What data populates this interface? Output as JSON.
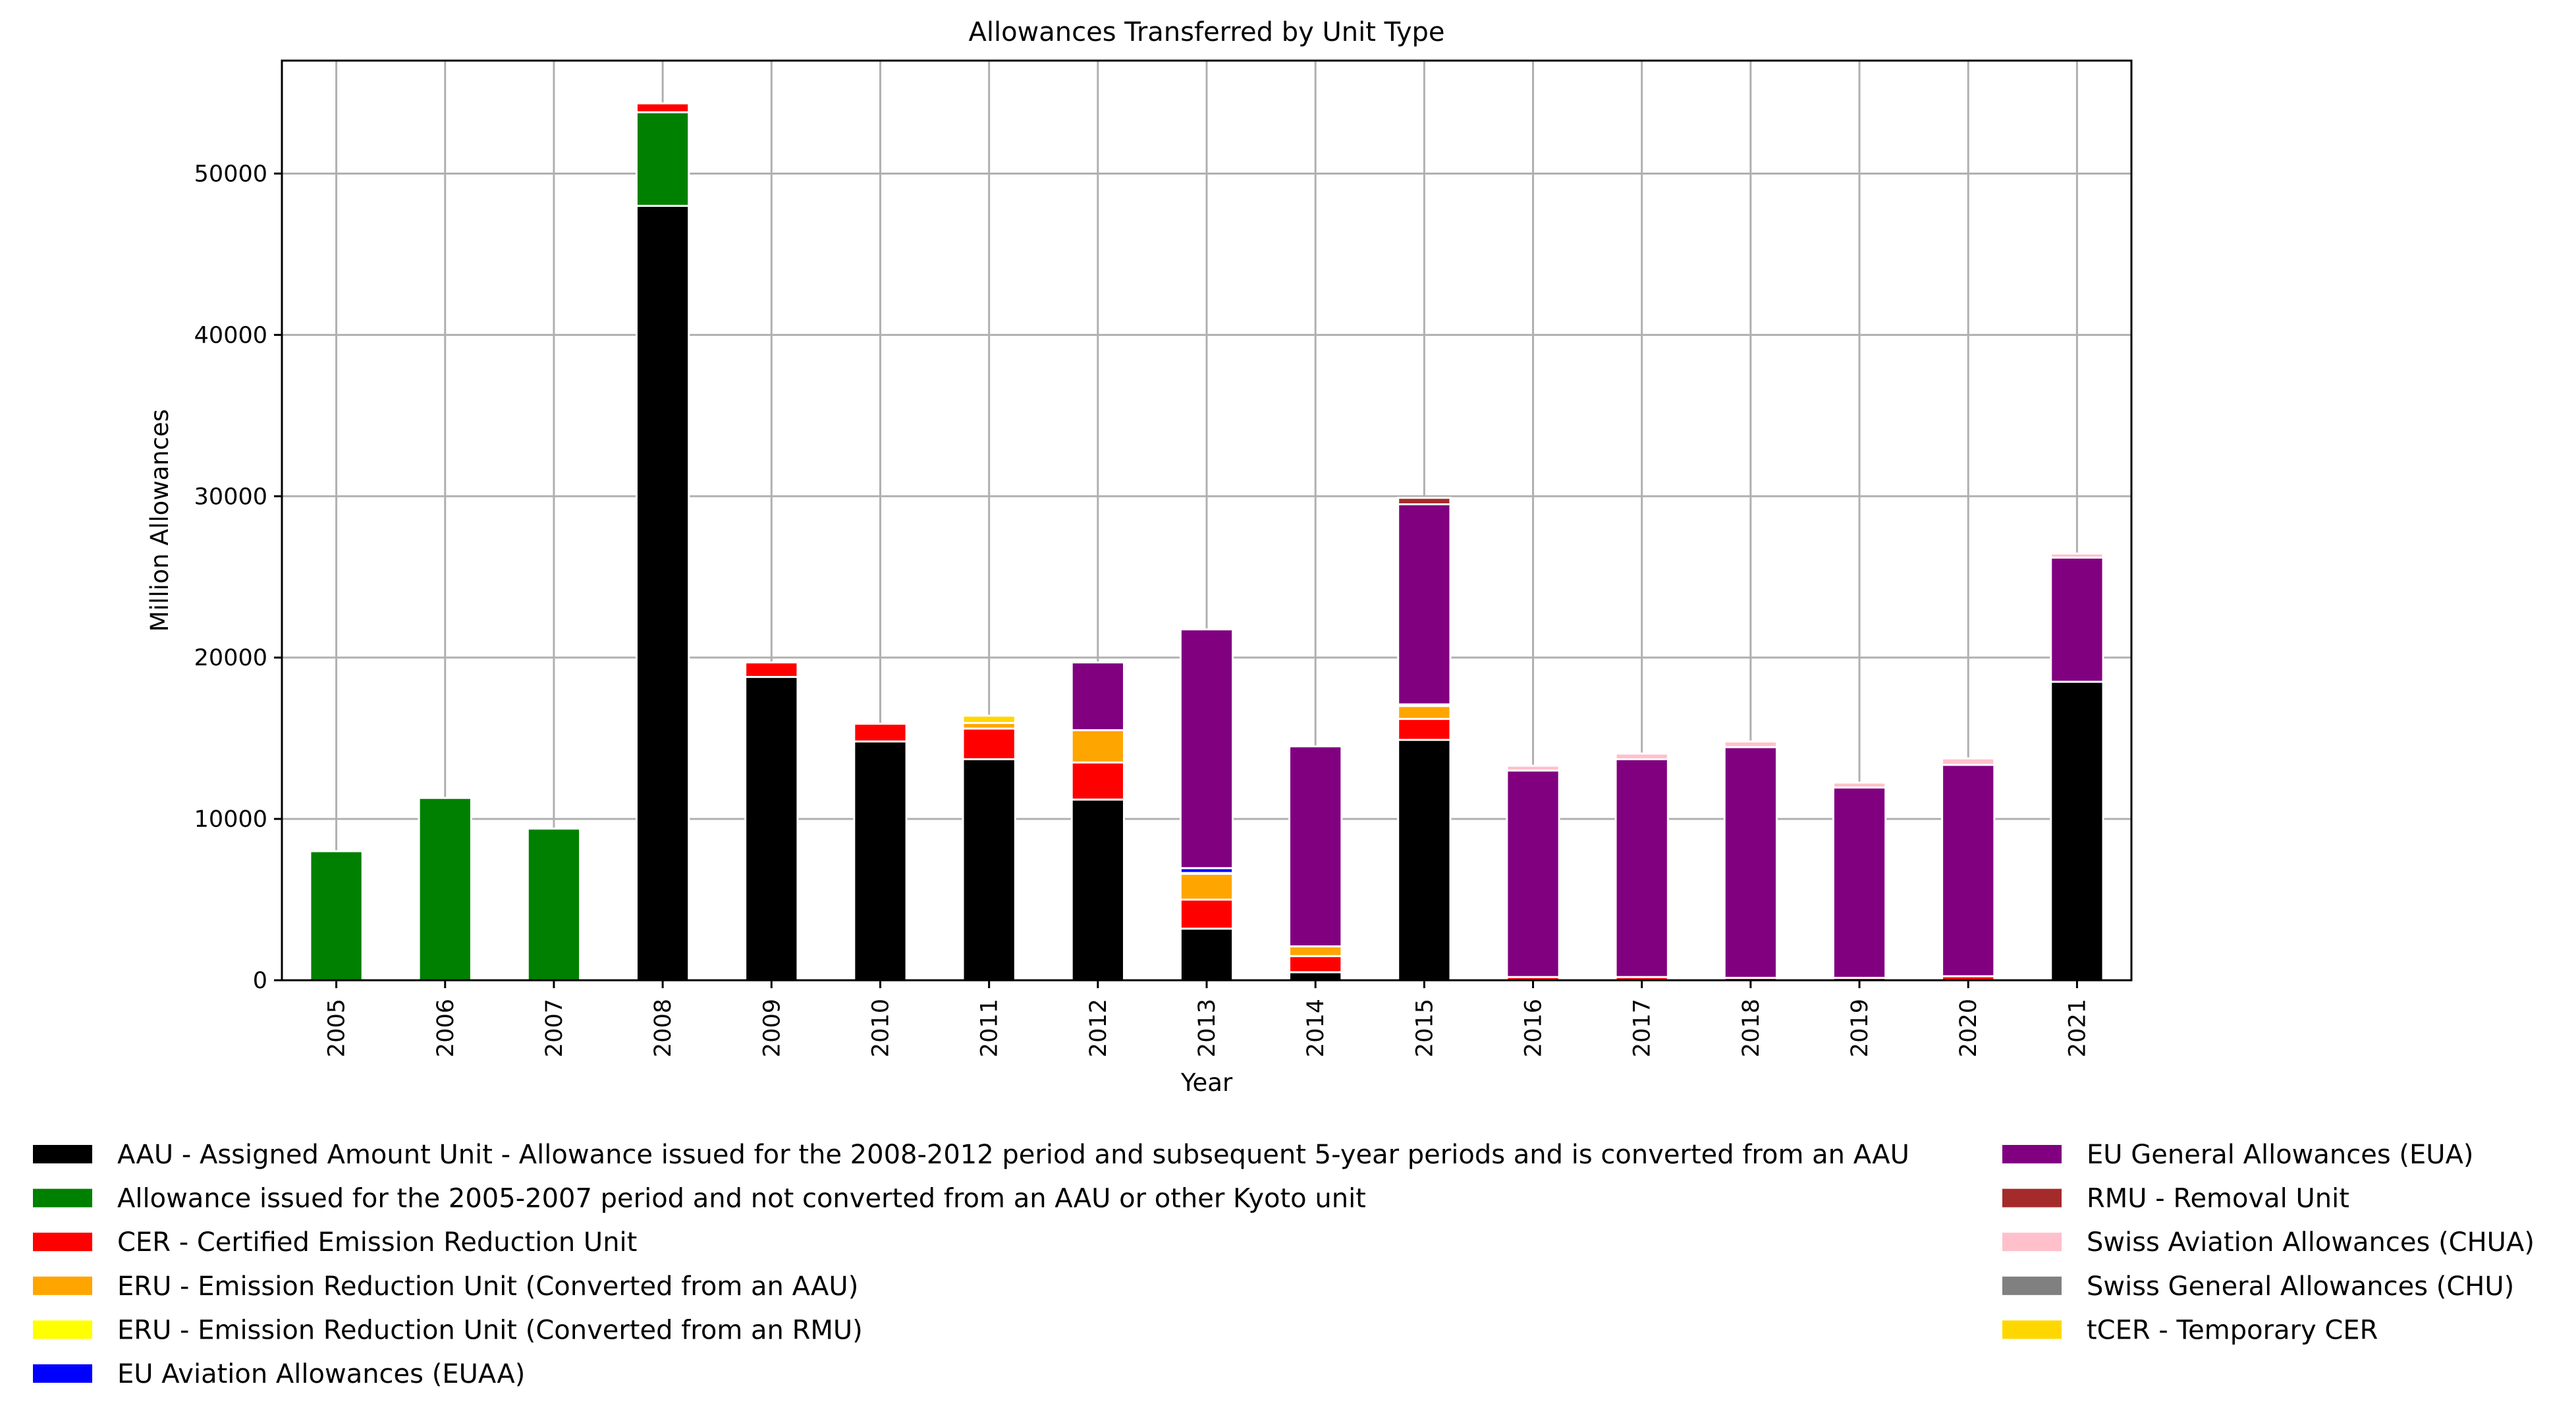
{
  "chart_data": {
    "type": "bar",
    "stacked": true,
    "title": "Allowances Transferred by Unit Type",
    "xlabel": "Year",
    "ylabel": "Million Allowances",
    "ylim": [
      0,
      57000
    ],
    "yticks": [
      0,
      10000,
      20000,
      30000,
      40000,
      50000
    ],
    "grid": true,
    "legend_position": "bottom",
    "categories": [
      "2005",
      "2006",
      "2007",
      "2008",
      "2009",
      "2010",
      "2011",
      "2012",
      "2013",
      "2014",
      "2015",
      "2016",
      "2017",
      "2018",
      "2019",
      "2020",
      "2021"
    ],
    "series": [
      {
        "name": "AAU - Assigned Amount Unit - Allowance issued for the 2008-2012 period and subsequent 5-year periods and is converted from an AAU",
        "color": "#000000",
        "values": [
          0,
          0,
          0,
          48000,
          18800,
          14800,
          13700,
          11200,
          3200,
          500,
          14900,
          0,
          0,
          0,
          0,
          0,
          18500
        ]
      },
      {
        "name": "Allowance issued for the 2005-2007 period and not converted from an AAU or other Kyoto unit",
        "color": "#008000",
        "values": [
          8000,
          11300,
          9400,
          5800,
          0,
          0,
          0,
          0,
          0,
          0,
          0,
          0,
          0,
          0,
          0,
          0,
          0
        ]
      },
      {
        "name": "CER - Certified Emission Reduction Unit",
        "color": "#ff0000",
        "values": [
          0,
          0,
          0,
          550,
          900,
          1100,
          1900,
          2300,
          1800,
          1000,
          1300,
          200,
          200,
          150,
          150,
          250,
          0
        ]
      },
      {
        "name": "ERU - Emission Reduction Unit (Converted from an AAU)",
        "color": "#ffa500",
        "values": [
          0,
          0,
          0,
          0,
          0,
          0,
          350,
          2000,
          1600,
          600,
          800,
          0,
          0,
          0,
          0,
          0,
          0
        ]
      },
      {
        "name": "ERU - Emission Reduction Unit (Converted from an RMU)",
        "color": "#ffff00",
        "values": [
          0,
          0,
          0,
          0,
          0,
          0,
          0,
          0,
          50,
          0,
          0,
          0,
          0,
          0,
          0,
          0,
          0
        ]
      },
      {
        "name": "EU Aviation Allowances (EUAA)",
        "color": "#0000ff",
        "values": [
          0,
          0,
          0,
          0,
          0,
          0,
          0,
          0,
          300,
          0,
          100,
          0,
          0,
          0,
          0,
          0,
          0
        ]
      },
      {
        "name": "EU General Allowances (EUA)",
        "color": "#800080",
        "values": [
          0,
          0,
          0,
          0,
          0,
          0,
          0,
          4200,
          14800,
          12400,
          12400,
          12800,
          13500,
          14300,
          11800,
          13100,
          7700
        ]
      },
      {
        "name": "RMU - Removal Unit",
        "color": "#a52a2a",
        "values": [
          0,
          0,
          0,
          0,
          0,
          0,
          0,
          0,
          0,
          0,
          400,
          0,
          0,
          0,
          0,
          0,
          0
        ]
      },
      {
        "name": "Swiss Aviation Allowances (CHUA)",
        "color": "#ffc0cb",
        "values": [
          0,
          0,
          0,
          0,
          0,
          0,
          0,
          0,
          0,
          0,
          0,
          300,
          350,
          350,
          300,
          400,
          250
        ]
      },
      {
        "name": "Swiss General Allowances (CHU)",
        "color": "#808080",
        "values": [
          0,
          0,
          0,
          0,
          0,
          0,
          0,
          0,
          0,
          0,
          0,
          0,
          0,
          0,
          0,
          0,
          0
        ]
      },
      {
        "name": "tCER - Temporary CER",
        "color": "#ffd700",
        "values": [
          0,
          0,
          0,
          0,
          0,
          0,
          450,
          0,
          0,
          0,
          0,
          0,
          0,
          0,
          0,
          0,
          0
        ]
      }
    ]
  }
}
